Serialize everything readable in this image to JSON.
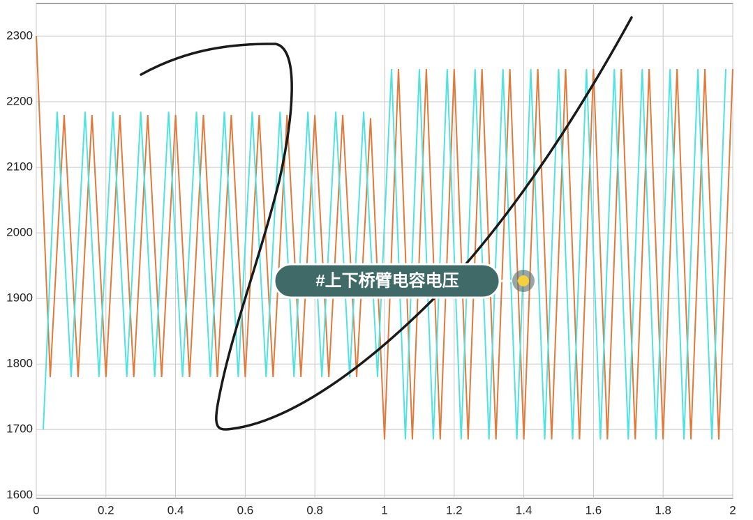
{
  "chart_data": {
    "type": "line",
    "annotation": "#上下桥臂电容电压",
    "xlim": [
      0,
      2
    ],
    "xticks": [
      0,
      0.2,
      0.4,
      0.6,
      0.8,
      1,
      1.2,
      1.4,
      1.6,
      1.8,
      2
    ],
    "ylim": [
      1595,
      2350
    ],
    "yticks": [
      1600,
      1700,
      1800,
      1900,
      2000,
      2100,
      2200,
      2300
    ],
    "grid": true,
    "series": [
      {
        "color": "#e07a3a",
        "x": [
          0,
          0.04,
          0.08,
          0.12,
          0.16,
          0.2,
          0.24,
          0.28,
          0.32,
          0.36,
          0.4,
          0.44,
          0.48,
          0.52,
          0.56,
          0.6,
          0.64,
          0.68,
          0.72,
          0.76,
          0.8,
          0.84,
          0.88,
          0.92,
          0.96,
          1,
          1.04,
          1.08,
          1.12,
          1.16,
          1.2,
          1.24,
          1.28,
          1.32,
          1.36,
          1.4,
          1.44,
          1.48,
          1.52,
          1.56,
          1.6,
          1.64,
          1.68,
          1.72,
          1.76,
          1.8,
          1.84,
          1.88,
          1.92,
          1.96,
          2
        ],
        "values": [
          2300,
          1780,
          2180,
          1780,
          2180,
          1780,
          2180,
          1780,
          2180,
          1780,
          2180,
          1780,
          2180,
          1780,
          2180,
          1780,
          2180,
          1780,
          2180,
          1780,
          2180,
          1780,
          2180,
          1780,
          2175,
          1685,
          2250,
          1685,
          2250,
          1685,
          2250,
          1685,
          2250,
          1685,
          2250,
          1685,
          2250,
          1685,
          2250,
          1685,
          2250,
          1685,
          2250,
          1685,
          2250,
          1685,
          2250,
          1685,
          2250,
          1685,
          2250
        ]
      },
      {
        "color": "#4fe3e0",
        "x": [
          0.02,
          0.06,
          0.1,
          0.14,
          0.18,
          0.22,
          0.26,
          0.3,
          0.34,
          0.38,
          0.42,
          0.46,
          0.5,
          0.54,
          0.58,
          0.62,
          0.66,
          0.7,
          0.74,
          0.78,
          0.82,
          0.86,
          0.9,
          0.94,
          0.98,
          1.02,
          1.06,
          1.1,
          1.14,
          1.18,
          1.22,
          1.26,
          1.3,
          1.34,
          1.38,
          1.42,
          1.46,
          1.5,
          1.54,
          1.58,
          1.62,
          1.66,
          1.7,
          1.74,
          1.78,
          1.82,
          1.86,
          1.9,
          1.94,
          1.98
        ],
        "values": [
          1700,
          2185,
          1780,
          2185,
          1780,
          2185,
          1780,
          2185,
          1780,
          2185,
          1780,
          2185,
          1780,
          2185,
          1780,
          2185,
          1780,
          2185,
          1780,
          2185,
          1780,
          2185,
          1780,
          2185,
          1780,
          2250,
          1685,
          2250,
          1685,
          2250,
          1685,
          2250,
          1685,
          2250,
          1685,
          2250,
          1685,
          2250,
          1685,
          2250,
          1685,
          2250,
          1685,
          2250,
          1685,
          2250,
          1685,
          2250,
          1685,
          2250
        ]
      }
    ]
  }
}
